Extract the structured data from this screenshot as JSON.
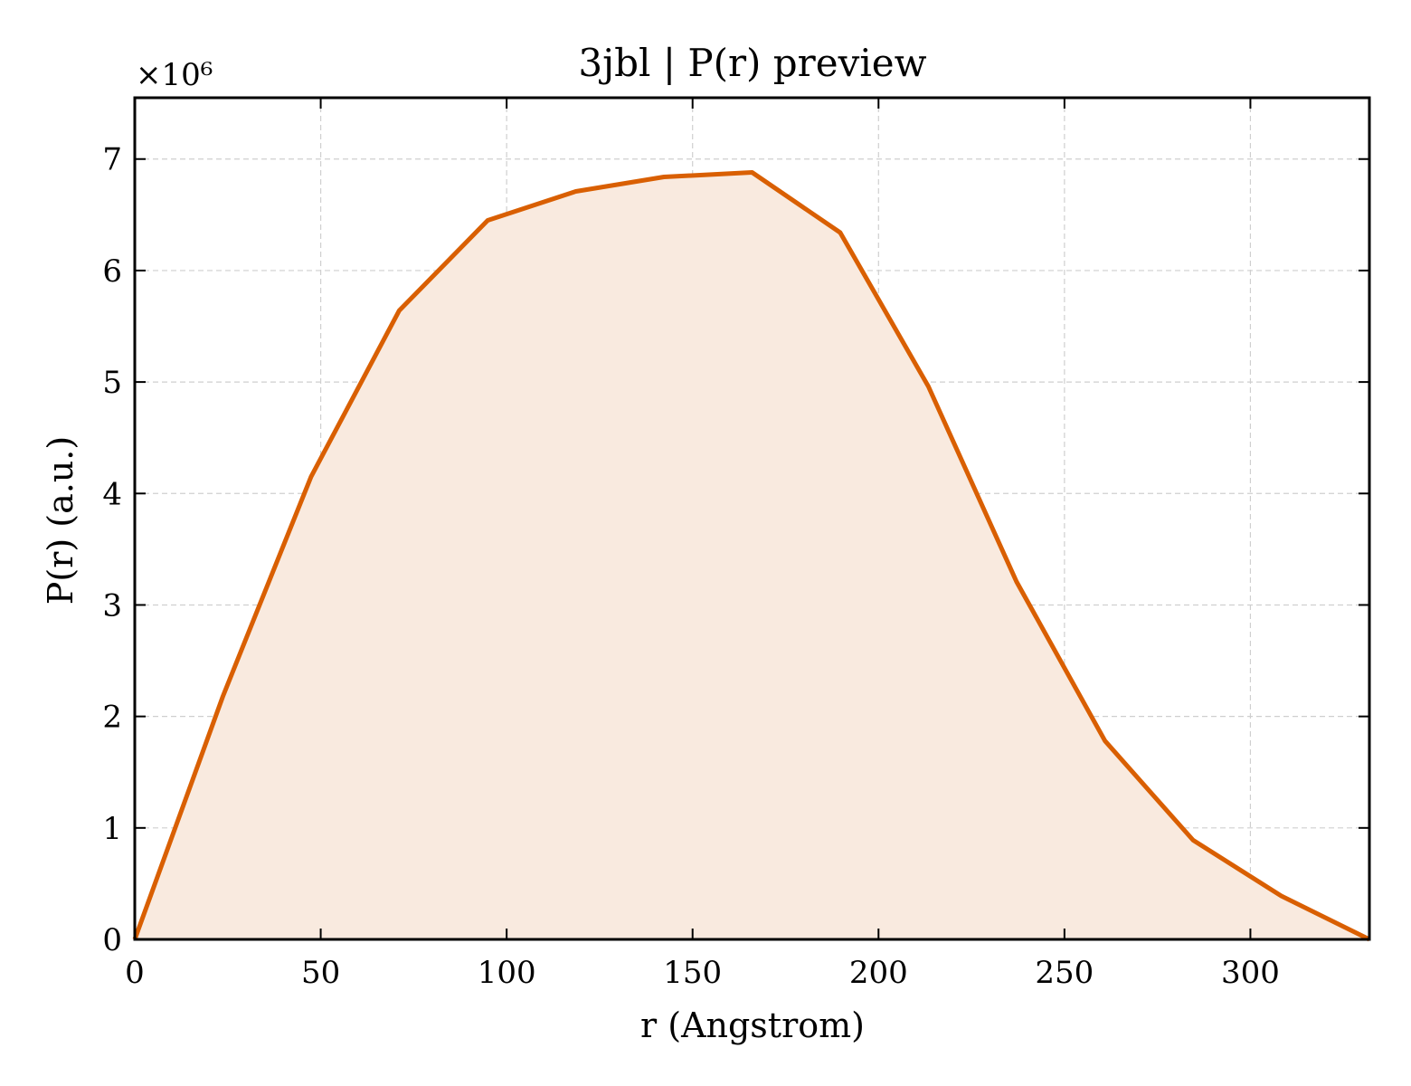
{
  "chart_data": {
    "type": "area",
    "title": "3jbl | P(r) preview",
    "xlabel": "r (Angstrom)",
    "ylabel": "P(r) (a.u.)",
    "y_multiplier_label": "×10⁶",
    "xlim": [
      0,
      332
    ],
    "ylim": [
      0,
      7.55
    ],
    "xticks": [
      0,
      50,
      100,
      150,
      200,
      250,
      300
    ],
    "yticks": [
      0,
      1,
      2,
      3,
      4,
      5,
      6,
      7
    ],
    "grid": true,
    "legend": "none",
    "line_color": "#d95f02",
    "fill_color": "#f9eadf",
    "series": [
      {
        "x": [
          0,
          23.7,
          47.4,
          71.1,
          94.9,
          118.6,
          142.3,
          166.0,
          189.7,
          213.4,
          237.1,
          260.9,
          284.6,
          308.3,
          332.0
        ],
        "values": [
          0,
          2.18,
          4.15,
          5.64,
          6.45,
          6.71,
          6.84,
          6.88,
          6.34,
          4.96,
          3.21,
          1.78,
          0.89,
          0.39,
          0.0
        ]
      }
    ]
  }
}
